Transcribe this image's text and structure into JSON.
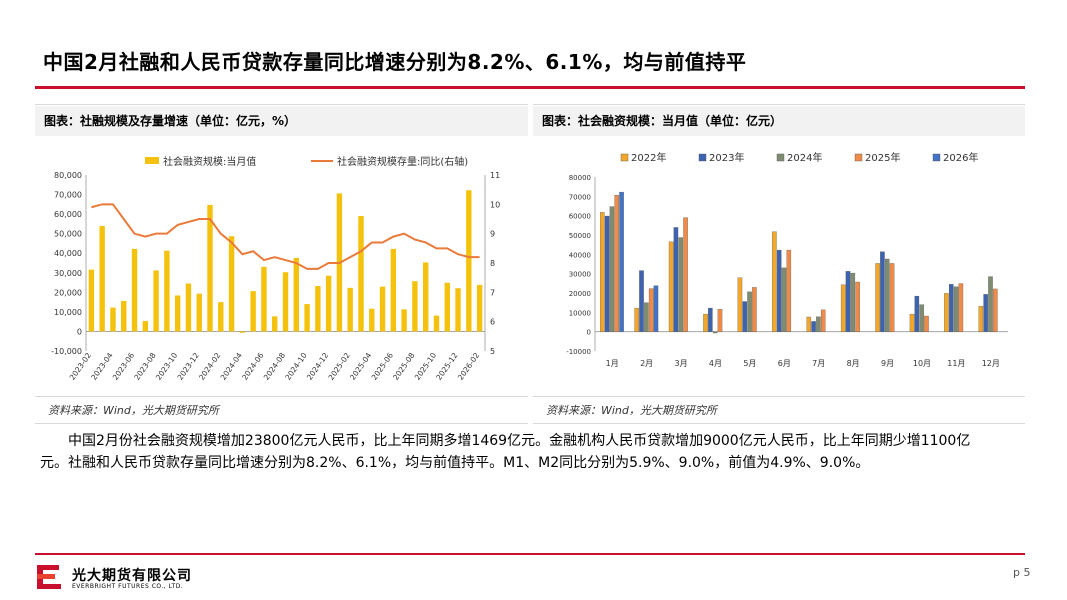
{
  "page": {
    "title": "中国2月社融和人民币贷款存量同比增速分别为8.2%、6.1%，均与前值持平",
    "paragraph_line1": "中国2月份社会融资规模增加23800亿元人民币，比上年同期多增1469亿元。金融机构人民币贷款增加9000亿元人民币，比上年同期少增1100亿",
    "paragraph_line2": "元。社融和人民币贷款存量同比增速分别为8.2%、6.1%，均与前值持平。M1、M2同比分别为5.9%、9.0%，前值为4.9%、9.0%。",
    "company_cn": "光大期货有限公司",
    "company_en": "EVERBRIGHT FUTURES CO., LTD.",
    "page_number": "p 5"
  },
  "panels": {
    "left": {
      "heading": "图表：社融规模及存量增速（单位：亿元，%）",
      "source": "资料来源：Wind，光大期货研究所"
    },
    "right": {
      "heading": "图表：社会融资规模：当月值（单位：亿元）",
      "source": "资料来源：Wind，光大期货研究所"
    }
  },
  "colors": {
    "accent_red": "#c8102e",
    "bar_gold": "#f4c20d",
    "line_orange": "#e97a3a"
  },
  "chart_data": [
    {
      "type": "bar+line",
      "title": "",
      "x": [
        "2023-02",
        "2023-03",
        "2023-04",
        "2023-05",
        "2023-06",
        "2023-07",
        "2023-08",
        "2023-09",
        "2023-10",
        "2023-11",
        "2023-12",
        "2024-01",
        "2024-02",
        "2024-03",
        "2024-04",
        "2024-05",
        "2024-06",
        "2024-07",
        "2024-08",
        "2024-09",
        "2024-10",
        "2024-11",
        "2024-12",
        "2025-01",
        "2025-02",
        "2025-03",
        "2025-04",
        "2025-05",
        "2025-06",
        "2025-07",
        "2025-08",
        "2025-09",
        "2025-10",
        "2025-11",
        "2025-12",
        "2026-01",
        "2026-02"
      ],
      "x_tick_labels": [
        "2023-02",
        "2023-04",
        "2023-06",
        "2023-08",
        "2023-10",
        "2023-12",
        "2024-02",
        "2024-04",
        "2024-06",
        "2024-08",
        "2024-10",
        "2024-12",
        "2025-02",
        "2025-04",
        "2025-06",
        "2025-08",
        "2025-10",
        "2025-12",
        "2026-02"
      ],
      "series": [
        {
          "name": "社会融资规模:当月值",
          "axis": "left",
          "kind": "bar",
          "values": [
            31600,
            53900,
            12200,
            15600,
            42200,
            5300,
            31200,
            41300,
            18400,
            24500,
            19300,
            64700,
            15000,
            48700,
            -700,
            20600,
            33000,
            7700,
            30300,
            37600,
            14000,
            23200,
            28500,
            70600,
            22300,
            59000,
            11600,
            22900,
            42200,
            11300,
            25700,
            35300,
            8100,
            24900,
            22100,
            72200,
            23800
          ]
        },
        {
          "name": "社会融资规模存量:同比(右轴)",
          "axis": "right",
          "kind": "line",
          "values": [
            9.9,
            10.0,
            10.0,
            9.5,
            9.0,
            8.9,
            9.0,
            9.0,
            9.3,
            9.4,
            9.5,
            9.5,
            9.0,
            8.7,
            8.3,
            8.4,
            8.1,
            8.2,
            8.1,
            8.0,
            7.8,
            7.8,
            8.0,
            8.0,
            8.2,
            8.4,
            8.7,
            8.7,
            8.9,
            9.0,
            8.8,
            8.7,
            8.5,
            8.5,
            8.3,
            8.2,
            8.2
          ]
        }
      ],
      "y_left": {
        "lim": [
          -10000,
          80000
        ],
        "ticks": [
          "-10,000",
          "0",
          "10,000",
          "20,000",
          "30,000",
          "40,000",
          "50,000",
          "60,000",
          "70,000",
          "80,000"
        ]
      },
      "y_right": {
        "lim": [
          5,
          11
        ],
        "ticks": [
          "5",
          "6",
          "7",
          "8",
          "9",
          "10",
          "11"
        ]
      },
      "legend": "top"
    },
    {
      "type": "bar",
      "title": "",
      "categories": [
        "1月",
        "2月",
        "3月",
        "4月",
        "5月",
        "6月",
        "7月",
        "8月",
        "9月",
        "10月",
        "11月",
        "12月"
      ],
      "series": [
        {
          "name": "2022年",
          "color": "#f2a72b",
          "values": [
            61700,
            12200,
            46500,
            9100,
            27900,
            51700,
            7600,
            24300,
            35300,
            9100,
            19800,
            13100
          ]
        },
        {
          "name": "2023年",
          "color": "#3d63b0",
          "values": [
            59800,
            31600,
            53900,
            12200,
            15600,
            42200,
            5300,
            31200,
            41300,
            18400,
            24500,
            19300
          ]
        },
        {
          "name": "2024年",
          "color": "#7f8c70",
          "values": [
            64700,
            15000,
            48700,
            -700,
            20600,
            33000,
            7700,
            30300,
            37600,
            14000,
            23200,
            28500
          ]
        },
        {
          "name": "2025年",
          "color": "#ef8b48",
          "values": [
            70600,
            22300,
            59000,
            11600,
            22900,
            42200,
            11300,
            25700,
            35300,
            8100,
            24900,
            22100
          ]
        },
        {
          "name": "2026年",
          "color": "#4472c4",
          "values": [
            72200,
            23800,
            null,
            null,
            null,
            null,
            null,
            null,
            null,
            null,
            null,
            null
          ]
        }
      ],
      "y": {
        "lim": [
          -10000,
          80000
        ],
        "ticks": [
          "-10000",
          "0",
          "10000",
          "20000",
          "30000",
          "40000",
          "50000",
          "60000",
          "70000",
          "80000"
        ]
      },
      "legend": "top"
    }
  ]
}
